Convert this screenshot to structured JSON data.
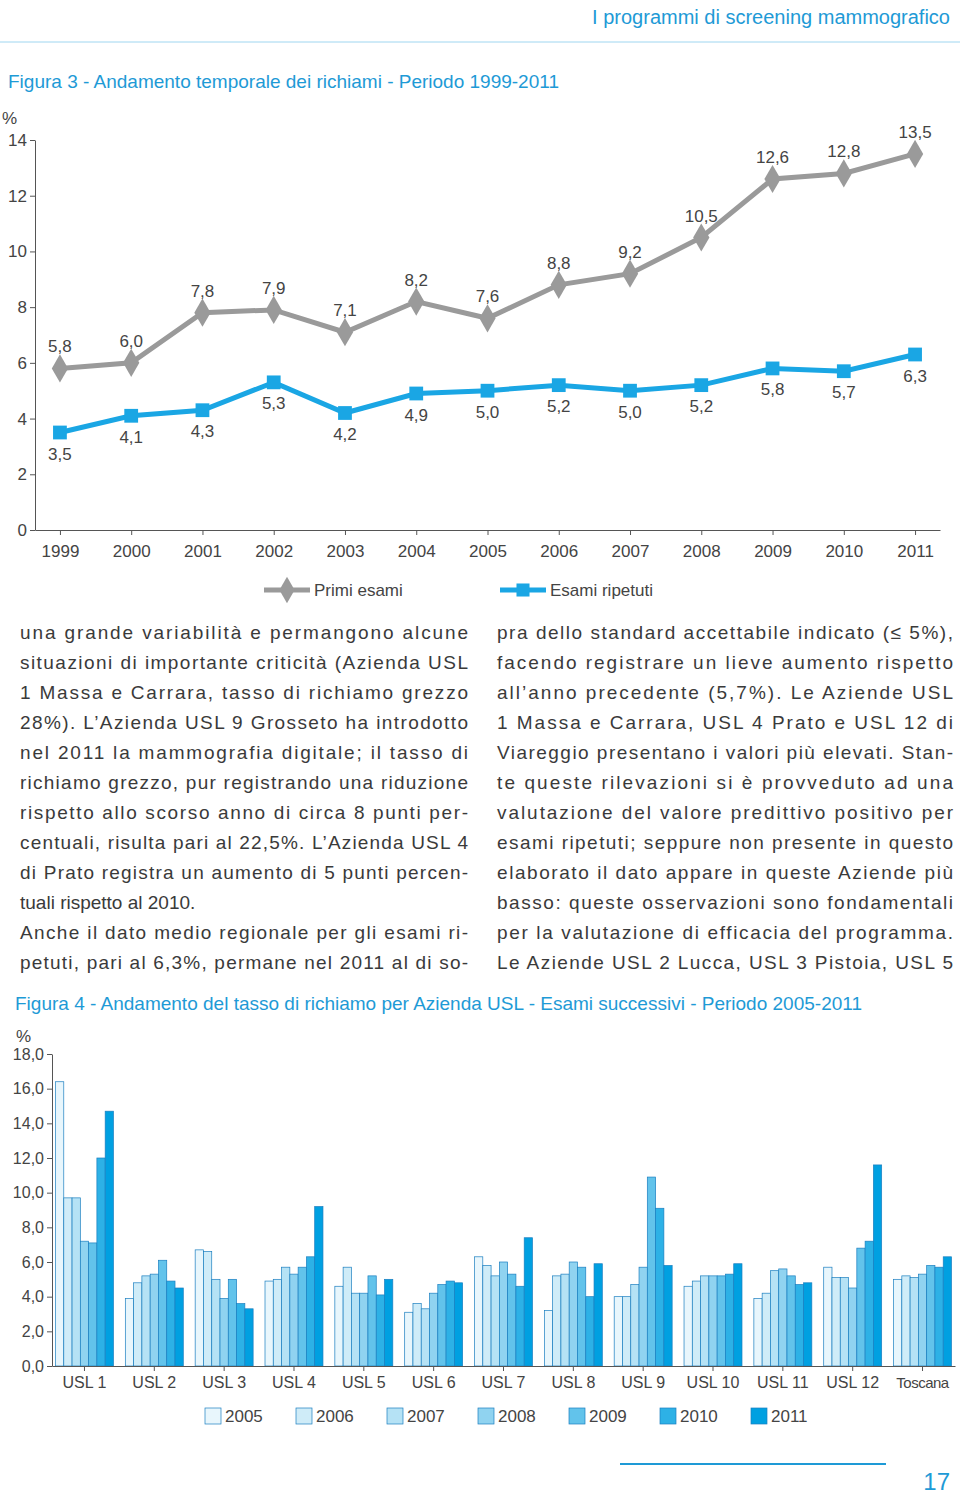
{
  "header": "I programmi di screening mammografico",
  "page_number": "17",
  "chart_data": [
    {
      "type": "line",
      "title": "Figura 3 - Andamento temporale dei richiami - Periodo 1999-2011",
      "y_label": "%",
      "categories": [
        "1999",
        "2000",
        "2001",
        "2002",
        "2003",
        "2004",
        "2005",
        "2006",
        "2007",
        "2008",
        "2009",
        "2010",
        "2011"
      ],
      "ylim": [
        0,
        14
      ],
      "yticks": [
        0,
        2,
        4,
        6,
        8,
        10,
        12,
        14
      ],
      "grid": false,
      "legend": "bottom",
      "data_labels": true,
      "series": [
        {
          "name": "Primi esami",
          "color": "#9a9a9a",
          "marker": "diamond",
          "values": [
            5.8,
            6.0,
            7.8,
            7.9,
            7.1,
            8.2,
            7.6,
            8.8,
            9.2,
            10.5,
            12.6,
            12.8,
            13.5
          ],
          "value_labels": [
            "5,8",
            "6,0",
            "7,8",
            "7,9",
            "7,1",
            "8,2",
            "7,6",
            "8,8",
            "9,2",
            "10,5",
            "12,6",
            "12,8",
            "13,5"
          ]
        },
        {
          "name": "Esami ripetuti",
          "color": "#1aa6e4",
          "marker": "square",
          "values": [
            3.5,
            4.1,
            4.3,
            5.3,
            4.2,
            4.9,
            5.0,
            5.2,
            5.0,
            5.2,
            5.8,
            5.7,
            6.3
          ],
          "value_labels": [
            "3,5",
            "4,1",
            "4,3",
            "5,3",
            "4,2",
            "4,9",
            "5,0",
            "5,2",
            "5,0",
            "5,2",
            "5,8",
            "5,7",
            "6,3"
          ]
        }
      ]
    },
    {
      "type": "bar",
      "title": "Figura 4 - Andamento del tasso di richiamo per Azienda USL - Esami successivi - Periodo 2005-2011",
      "y_label": "%",
      "categories": [
        "USL 1",
        "USL 2",
        "USL 3",
        "USL 4",
        "USL 5",
        "USL 6",
        "USL 7",
        "USL 8",
        "USL 9",
        "USL 10",
        "USL 11",
        "USL 12",
        "Toscana"
      ],
      "ylim": [
        0,
        18
      ],
      "yticks": [
        {
          "value": 0,
          "label": "0,0"
        },
        {
          "value": 2,
          "label": "2,0"
        },
        {
          "value": 4,
          "label": "4,0"
        },
        {
          "value": 6,
          "label": "6,0"
        },
        {
          "value": 8,
          "label": "8,0"
        },
        {
          "value": 10,
          "label": "10,0"
        },
        {
          "value": 12,
          "label": "12,0"
        },
        {
          "value": 14,
          "label": "14,0"
        },
        {
          "value": 16,
          "label": "16,0"
        },
        {
          "value": 18,
          "label": "18,0"
        }
      ],
      "grid": false,
      "legend": "bottom",
      "series": [
        {
          "name": "2005",
          "color": "#e8f6fc",
          "values": [
            16.4,
            3.9,
            6.7,
            4.9,
            4.6,
            3.1,
            6.3,
            3.2,
            4.0,
            4.6,
            3.9,
            5.7,
            5.0
          ]
        },
        {
          "name": "2006",
          "color": "#cfecf8",
          "values": [
            9.7,
            4.8,
            6.6,
            5.0,
            5.7,
            3.6,
            5.8,
            5.2,
            4.0,
            4.9,
            4.2,
            5.1,
            5.2
          ]
        },
        {
          "name": "2007",
          "color": "#b5e2f5",
          "values": [
            9.7,
            5.2,
            5.0,
            5.7,
            4.2,
            3.3,
            5.2,
            5.3,
            4.7,
            5.2,
            5.5,
            5.1,
            5.1
          ]
        },
        {
          "name": "2008",
          "color": "#90d3f0",
          "values": [
            7.2,
            5.3,
            3.9,
            5.3,
            4.2,
            4.2,
            6.0,
            6.0,
            5.7,
            5.2,
            5.6,
            4.5,
            5.3
          ]
        },
        {
          "name": "2009",
          "color": "#62c3eb",
          "values": [
            7.1,
            6.1,
            5.0,
            5.7,
            5.2,
            4.7,
            5.3,
            5.7,
            10.9,
            5.2,
            5.2,
            6.8,
            5.8
          ]
        },
        {
          "name": "2010",
          "color": "#2db1e6",
          "values": [
            12.0,
            4.9,
            3.6,
            6.3,
            4.1,
            4.9,
            4.6,
            4.0,
            9.1,
            5.3,
            4.7,
            7.2,
            5.7
          ]
        },
        {
          "name": "2011",
          "color": "#00a0e1",
          "values": [
            14.7,
            4.5,
            3.3,
            9.2,
            5.0,
            4.8,
            7.4,
            5.9,
            5.8,
            5.9,
            4.8,
            11.6,
            6.3
          ]
        }
      ]
    }
  ],
  "text": {
    "left": [
      "una grande variabilità e permangono alcune",
      "situazioni di importante criticità (Azienda USL",
      "1 Massa e Carrara, tasso di richiamo grezzo",
      "28%). L’Azienda USL 9 Grosseto ha introdotto",
      "nel 2011 la mammografia digitale; il tasso di",
      "richiamo grezzo, pur registrando una riduzione",
      "rispetto allo scorso anno di circa 8 punti per-",
      "centuali, risulta pari al 22,5%. L’Azienda USL 4",
      "di Prato registra un aumento di 5 punti percen-",
      "tuali rispetto al 2010.",
      "Anche il dato medio regionale per gli esami ri-",
      "petuti, pari al 6,3%, permane nel 2011 al di so-"
    ],
    "right": [
      "pra dello standard accettabile indicato (≤ 5%),",
      "facendo registrare un lieve aumento rispetto",
      "all’anno precedente (5,7%). Le Aziende USL",
      "1 Massa e Carrara, USL 4 Prato e USL 12 di",
      "Viareggio presentano i valori più elevati. Stan-",
      "te queste rilevazioni si è provveduto ad una",
      "valutazione del valore predittivo positivo per",
      "esami ripetuti; seppure non presente in questo",
      "elaborato il dato appare in queste Aziende più",
      "basso: queste osservazioni sono fondamentali",
      "per la valutazione di efficacia del programma.",
      "Le Aziende USL 2 Lucca, USL 3 Pistoia, USL 5"
    ]
  }
}
